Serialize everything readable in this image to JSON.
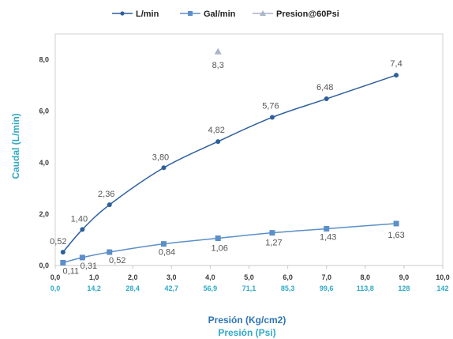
{
  "chart_data": {
    "type": "line",
    "legend_position": "top",
    "grid": false,
    "xlabel": "Presión (Kg/cm2)",
    "x2label": "Presión (Psi)",
    "ylabel": "Caudal (L/min)",
    "xlim": [
      0.0,
      10.0
    ],
    "ylim": [
      0.0,
      9.0
    ],
    "x_ticks": [
      "0,0",
      "1,0",
      "2,0",
      "3,0",
      "4,0",
      "5,0",
      "6,0",
      "7,0",
      "8,0",
      "9,0",
      "10,0"
    ],
    "x2_ticks": [
      "0,0",
      "14,2",
      "28,4",
      "42,7",
      "56,9",
      "71,1",
      "85,3",
      "99,6",
      "113,8",
      "128",
      "142"
    ],
    "y_ticks": [
      "0,0",
      "2,0",
      "4,0",
      "6,0",
      "8,0"
    ],
    "series": [
      {
        "name": "L/min",
        "color": "#2e5f9e",
        "marker": "circle",
        "x": [
          0.2,
          0.7,
          1.4,
          2.8,
          4.2,
          5.6,
          7.0,
          8.8
        ],
        "y": [
          0.52,
          1.4,
          2.36,
          3.8,
          4.82,
          5.76,
          6.48,
          7.4
        ],
        "labels": [
          "0,52",
          "1,40",
          "2,36",
          "3,80",
          "4,82",
          "5,76",
          "6,48",
          "7,4"
        ]
      },
      {
        "name": "Gal/min",
        "color": "#5b8fc9",
        "marker": "square",
        "x": [
          0.2,
          0.7,
          1.4,
          2.8,
          4.2,
          5.6,
          7.0,
          8.8
        ],
        "y": [
          0.11,
          0.31,
          0.52,
          0.84,
          1.06,
          1.27,
          1.43,
          1.63
        ],
        "labels": [
          "0,11",
          "0,31",
          "0,52",
          "0,84",
          "1,06",
          "1,27",
          "1,43",
          "1,63"
        ]
      },
      {
        "name": "Presion@60Psi",
        "color": "#a9b4c8",
        "marker": "triangle",
        "x": [
          4.2
        ],
        "y": [
          8.3
        ],
        "labels": [
          "8,3"
        ]
      }
    ]
  }
}
